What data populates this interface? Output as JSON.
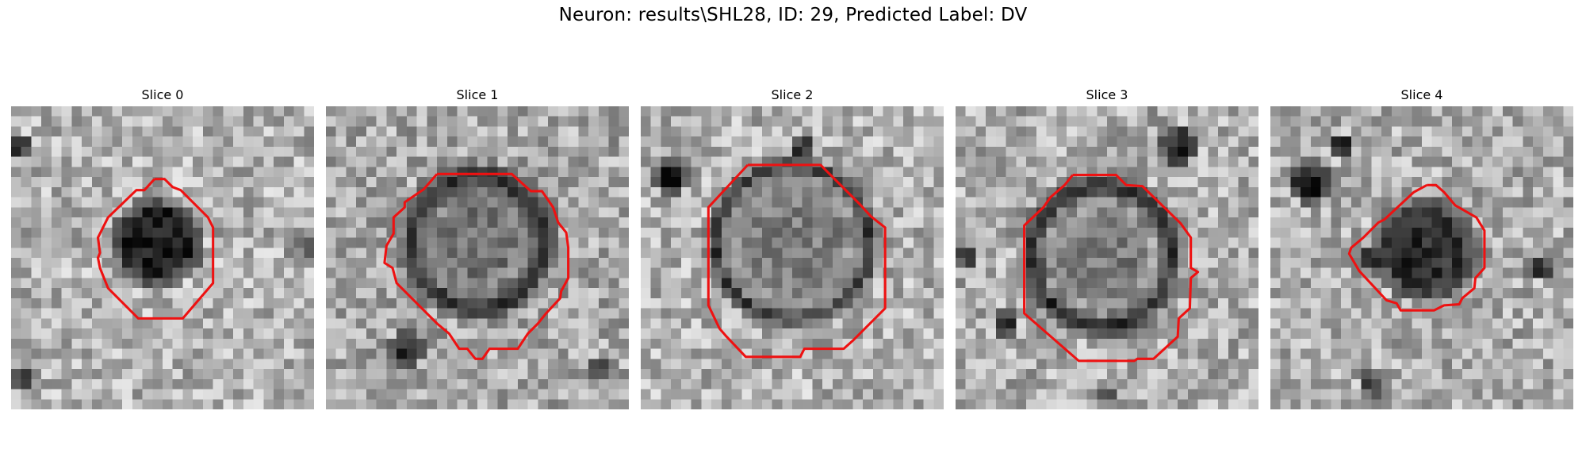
{
  "figure": {
    "title": "Neuron: results\\SHL28, ID: 29, Predicted Label: DV"
  },
  "panels": [
    {
      "title": "Slice 0",
      "contour_color": "#ee1111",
      "dark_blob": "small dark irregular cell"
    },
    {
      "title": "Slice 1",
      "contour_color": "#ee1111",
      "dark_blob": "dark ring cell"
    },
    {
      "title": "Slice 2",
      "contour_color": "#ee1111",
      "dark_blob": "medium gray round cell"
    },
    {
      "title": "Slice 3",
      "contour_color": "#ee1111",
      "dark_blob": "gray cell with dark rim"
    },
    {
      "title": "Slice 4",
      "contour_color": "#ee1111",
      "dark_blob": "small dark cell"
    }
  ],
  "colors": {
    "background": "#ffffff",
    "contour": "#ee1111"
  }
}
